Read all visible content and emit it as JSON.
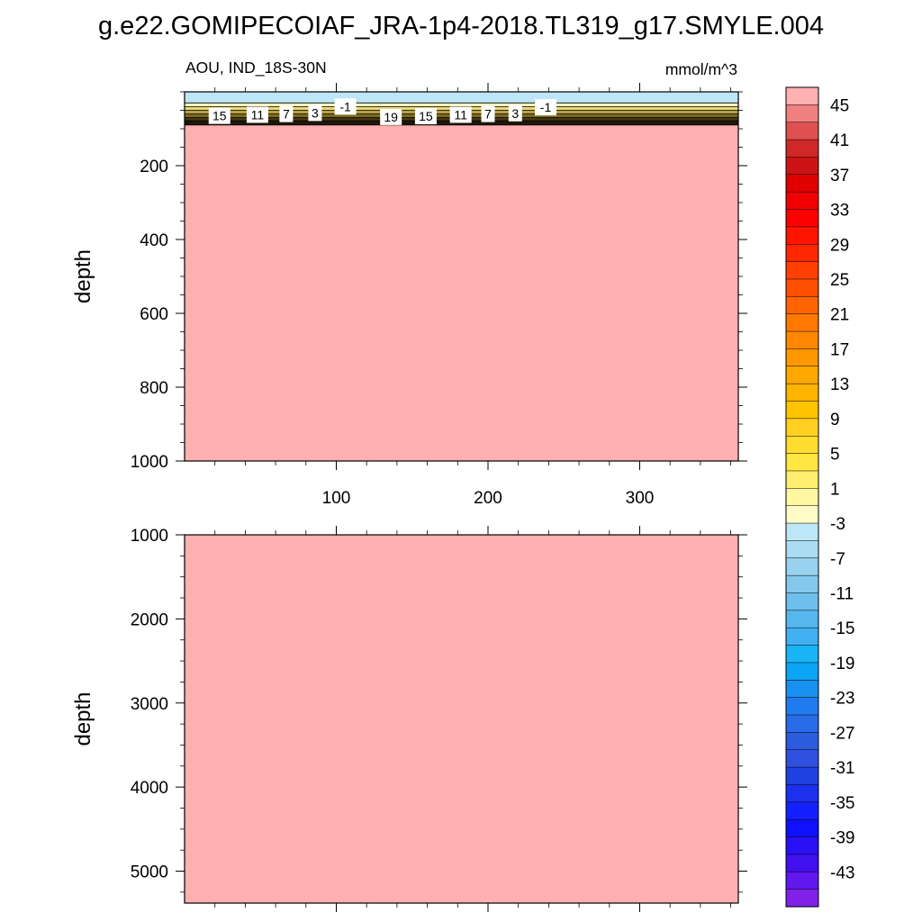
{
  "figure": {
    "title": "g.e22.GOMIPECOIAF_JRA-1p4-2018.TL319_g17.SMYLE.004",
    "subtitle_left": "AOU, IND_18S-30N",
    "subtitle_right": "mmol/m^3"
  },
  "chart_data": [
    {
      "type": "heatmap",
      "panel": "upper",
      "ylabel": "depth",
      "xlim": [
        0,
        365
      ],
      "ylim": [
        0,
        1000
      ],
      "y_inverted": true,
      "x_ticks": [
        100,
        200,
        300
      ],
      "y_ticks": [
        200,
        400,
        600,
        800,
        1000
      ],
      "layers": [
        {
          "depth_top": 0,
          "depth_bottom": 30,
          "value": -3,
          "color": "#bde6f6"
        },
        {
          "depth_top": 30,
          "depth_bottom": 40,
          "value": 1,
          "color": "#fffbc4"
        },
        {
          "depth_top": 40,
          "depth_bottom": 50,
          "value": 5,
          "color": "#e8d97a"
        },
        {
          "depth_top": 50,
          "depth_bottom": 60,
          "value": 9,
          "color": "#b7a044"
        },
        {
          "depth_top": 60,
          "depth_bottom": 70,
          "value": 13,
          "color": "#7e6a23"
        },
        {
          "depth_top": 70,
          "depth_bottom": 78,
          "value": 17,
          "color": "#4a3b10"
        },
        {
          "depth_top": 78,
          "depth_bottom": 90,
          "value": 21,
          "color": "#1e1608"
        },
        {
          "depth_top": 90,
          "depth_bottom": 1000,
          "value": 47,
          "color": "#ffb0b0"
        }
      ],
      "contour_labels": [
        {
          "text": "15",
          "x": 23,
          "depth": 65
        },
        {
          "text": "11",
          "x": 48,
          "depth": 62
        },
        {
          "text": "7",
          "x": 67,
          "depth": 60
        },
        {
          "text": "3",
          "x": 86,
          "depth": 57
        },
        {
          "text": "-1",
          "x": 106,
          "depth": 40
        },
        {
          "text": "19",
          "x": 136,
          "depth": 68
        },
        {
          "text": "15",
          "x": 159,
          "depth": 66
        },
        {
          "text": "11",
          "x": 182,
          "depth": 62
        },
        {
          "text": "7",
          "x": 200,
          "depth": 60
        },
        {
          "text": "3",
          "x": 218,
          "depth": 58
        },
        {
          "text": "-1",
          "x": 238,
          "depth": 42
        }
      ]
    },
    {
      "type": "heatmap",
      "panel": "lower",
      "ylabel": "depth",
      "xlim": [
        0,
        365
      ],
      "ylim": [
        1000,
        5380
      ],
      "y_inverted": true,
      "y_ticks": [
        1000,
        2000,
        3000,
        4000,
        5000
      ],
      "layers": [
        {
          "depth_top": 1000,
          "depth_bottom": 5380,
          "value": 47,
          "color": "#ffb0b0"
        }
      ]
    }
  ],
  "colorbar": {
    "levels": [
      -45,
      -43,
      -41,
      -39,
      -37,
      -35,
      -33,
      -31,
      -29,
      -27,
      -25,
      -23,
      -21,
      -19,
      -17,
      -15,
      -13,
      -11,
      -9,
      -7,
      -5,
      -3,
      -1,
      1,
      3,
      5,
      7,
      9,
      11,
      13,
      15,
      17,
      19,
      21,
      23,
      25,
      27,
      29,
      31,
      33,
      35,
      37,
      39,
      41,
      43,
      45
    ],
    "tick_labels": [
      "45",
      "41",
      "37",
      "33",
      "29",
      "25",
      "21",
      "17",
      "13",
      "9",
      "5",
      "1",
      "-3",
      "-7",
      "-11",
      "-15",
      "-19",
      "-23",
      "-27",
      "-31",
      "-35",
      "-39",
      "-43"
    ],
    "colors_top_to_bottom": [
      "#ffb0b0",
      "#f08080",
      "#e05050",
      "#d02828",
      "#cc1414",
      "#e00000",
      "#f00000",
      "#ff0000",
      "#ff1400",
      "#ff2800",
      "#ff4000",
      "#ff5000",
      "#ff6400",
      "#ff7800",
      "#ff8800",
      "#ff9800",
      "#ffa800",
      "#ffb400",
      "#ffc400",
      "#ffd020",
      "#ffdc30",
      "#ffe640",
      "#ffee70",
      "#fff8a0",
      "#fffcc8",
      "#bde6f6",
      "#abdcf2",
      "#98d2ee",
      "#84c8ec",
      "#6ec0ec",
      "#56b6ee",
      "#40b0f2",
      "#18b4f6",
      "#0ca4f4",
      "#1890f0",
      "#207cee",
      "#286ce8",
      "#2c5ce0",
      "#3050e0",
      "#2040e0",
      "#1c30ee",
      "#1420ff",
      "#1010ff",
      "#2a10f4",
      "#4010ee",
      "#6018ee",
      "#8020e8"
    ]
  }
}
